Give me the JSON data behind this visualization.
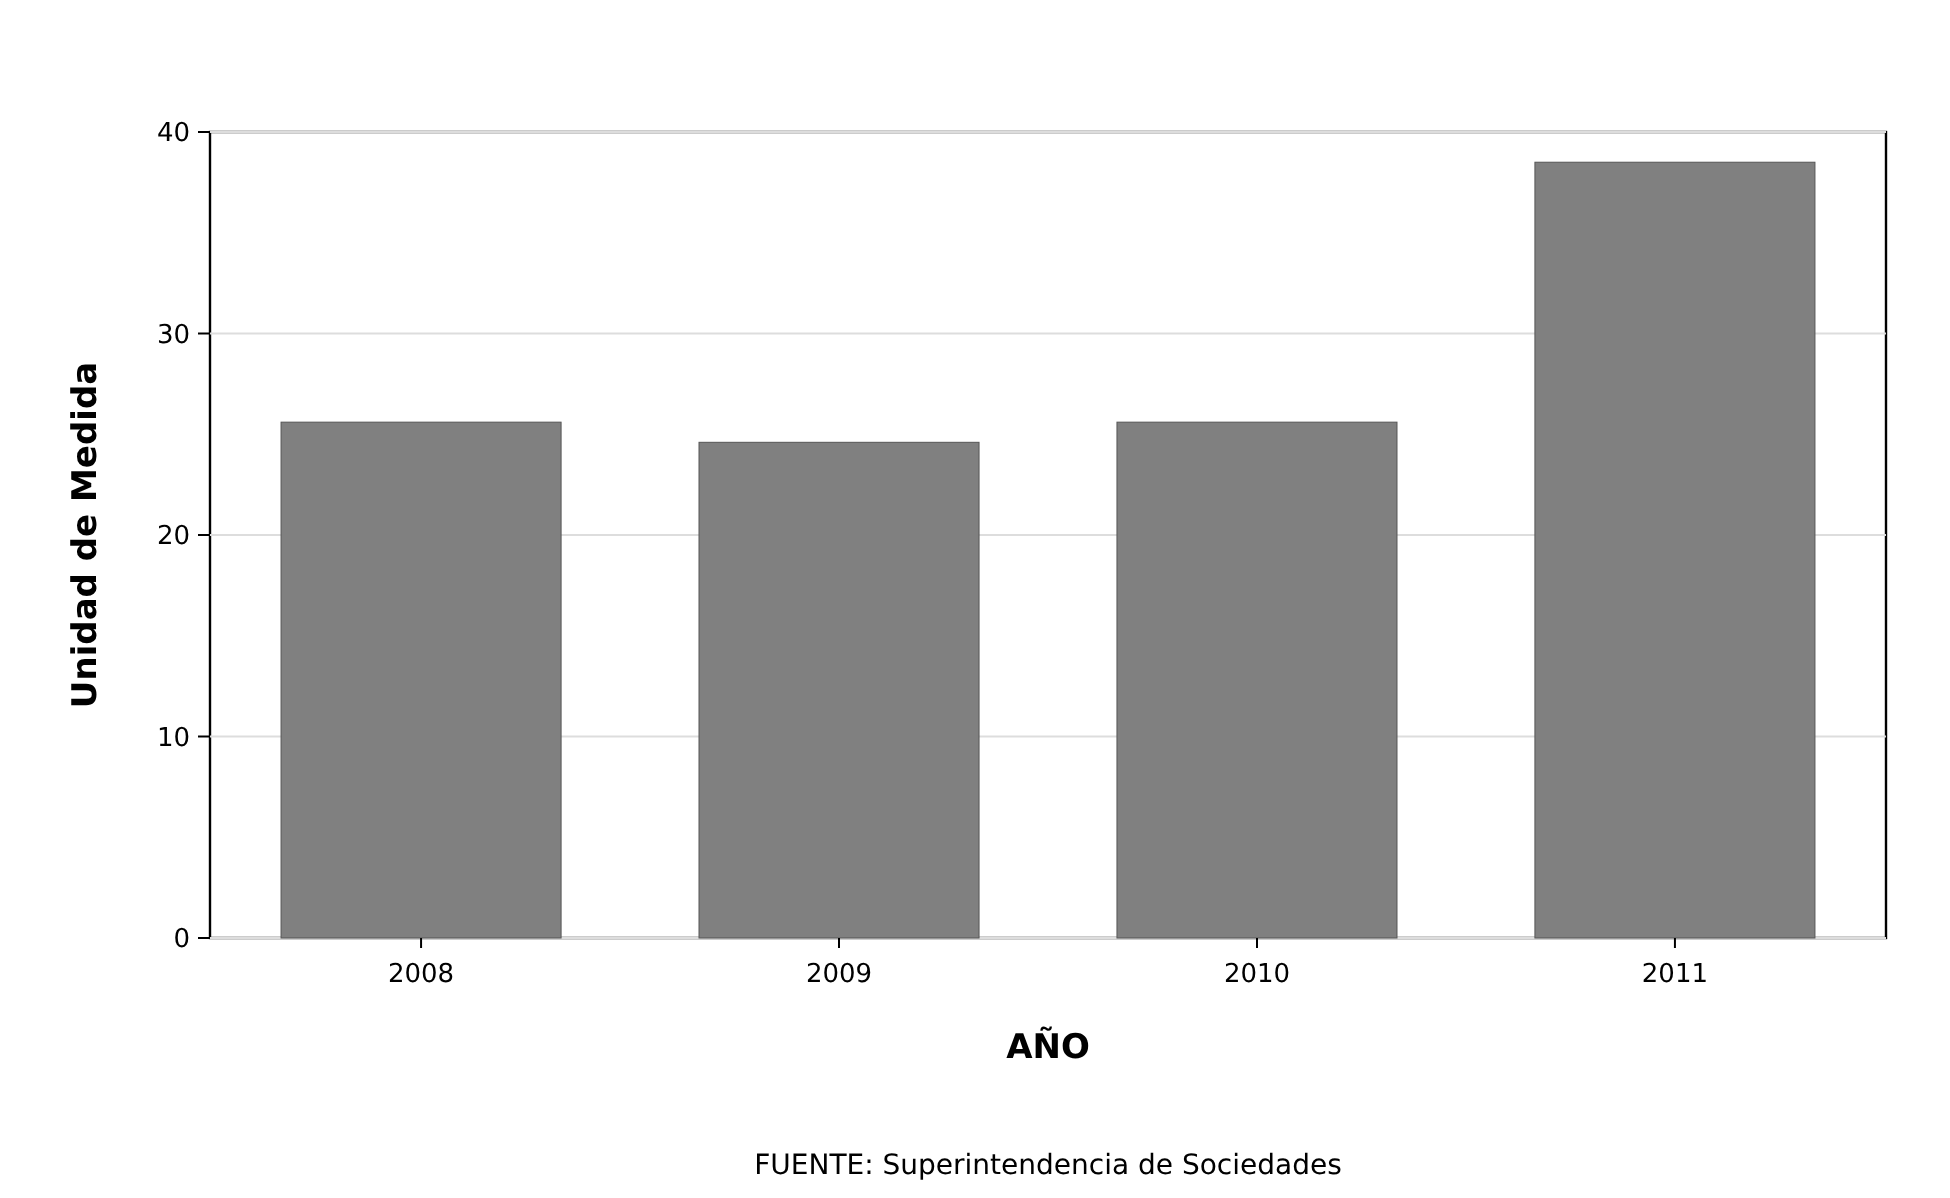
{
  "chart_data": {
    "type": "bar",
    "xlabel": "AÑO",
    "ylabel": "Unidad de Medida",
    "categories": [
      "2008",
      "2009",
      "2010",
      "2011"
    ],
    "values": [
      25.6,
      24.6,
      25.6,
      38.5
    ],
    "color": "#808080",
    "ylim": [
      0,
      40
    ],
    "yticks": [
      0,
      10,
      20,
      30,
      40
    ],
    "grid": "y",
    "annotations": [
      "FUENTE: Superintendencia de Sociedades"
    ]
  }
}
